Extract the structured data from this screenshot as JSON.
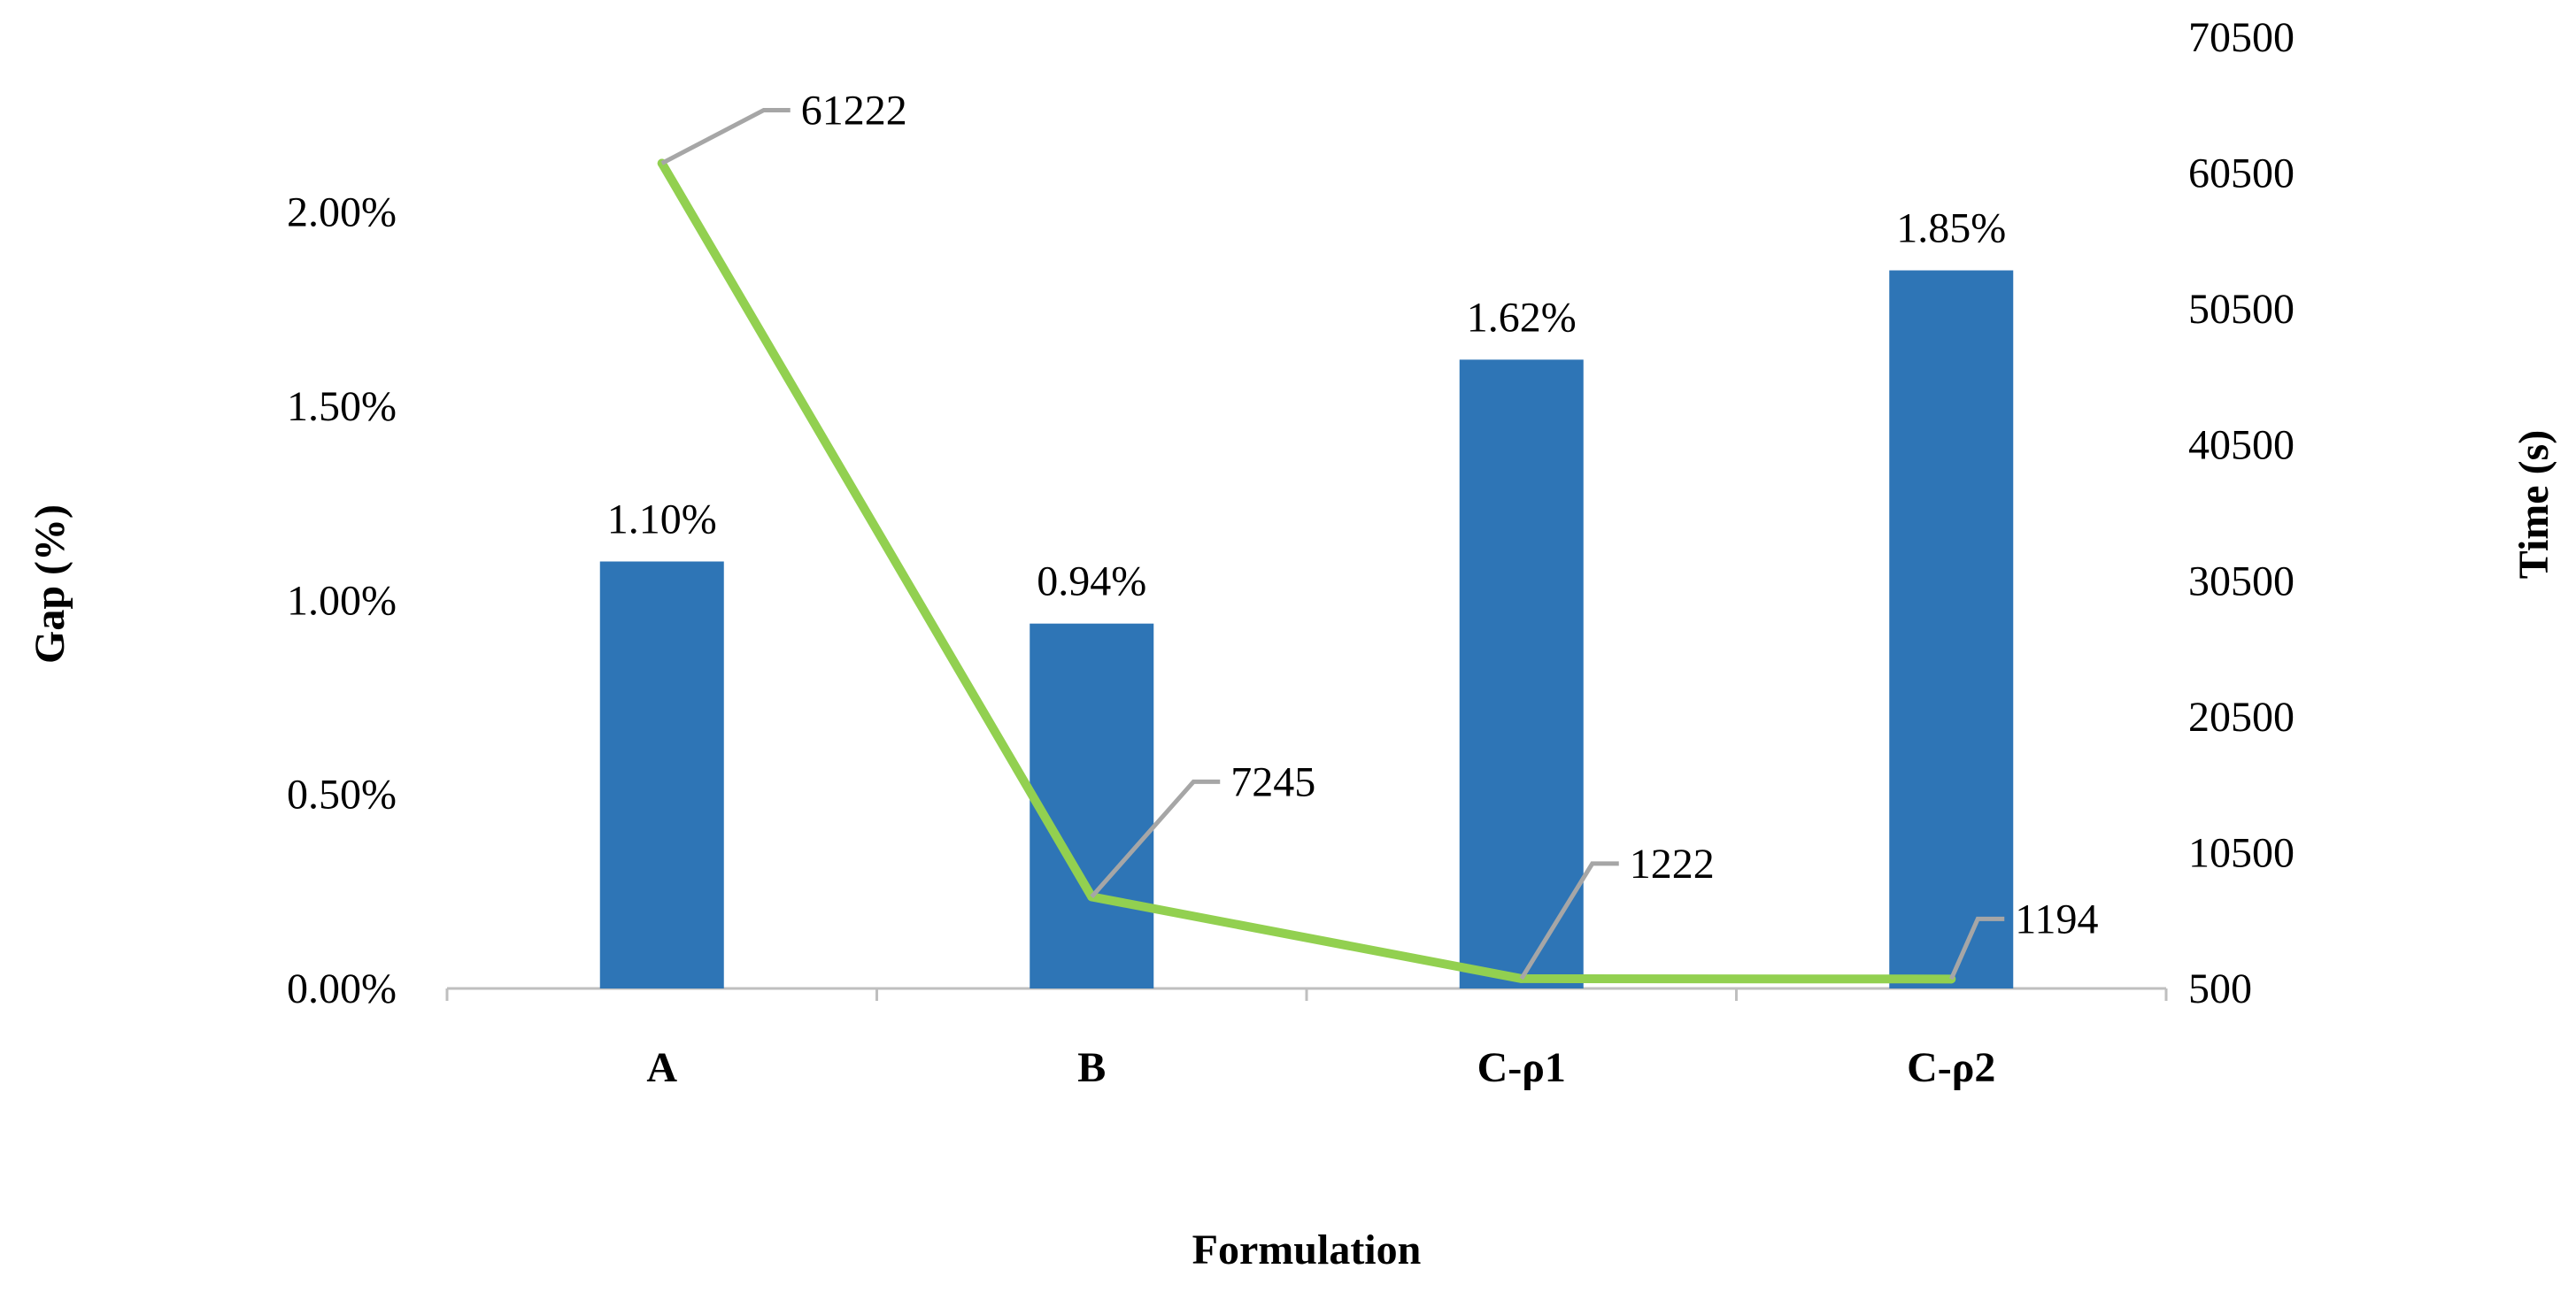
{
  "chart_data": {
    "type": "bar",
    "categories": [
      "A",
      "B",
      "C-ρ1",
      "C-ρ2"
    ],
    "xlabel": "Formulation",
    "ylabel": "Gap (%)",
    "y2label": "Time (s)",
    "ylim": [
      0,
      2.2
    ],
    "y2lim": [
      500,
      70500
    ],
    "y_ticks": [
      0,
      0.5,
      1.0,
      1.5,
      2.0
    ],
    "y_tick_labels": [
      "0.00%",
      "0.50%",
      "1.00%",
      "1.50%",
      "2.00%"
    ],
    "y2_ticks": [
      500,
      10500,
      20500,
      30500,
      40500,
      50500,
      60500,
      70500
    ],
    "y2_tick_labels": [
      "500",
      "10500",
      "20500",
      "30500",
      "40500",
      "50500",
      "60500",
      "70500"
    ],
    "grid": false,
    "series": [
      {
        "kind": "bar",
        "axis": "left",
        "color": "#2e75b6",
        "values": [
          1.1,
          0.94,
          1.62,
          1.85
        ],
        "labels": [
          "1.10%",
          "0.94%",
          "1.62%",
          "1.85%"
        ]
      },
      {
        "kind": "line",
        "axis": "right",
        "color": "#92d050",
        "values": [
          61222,
          7245,
          1222,
          1194
        ],
        "labels": [
          "61222",
          "7245",
          "1222",
          "1194"
        ]
      }
    ]
  }
}
